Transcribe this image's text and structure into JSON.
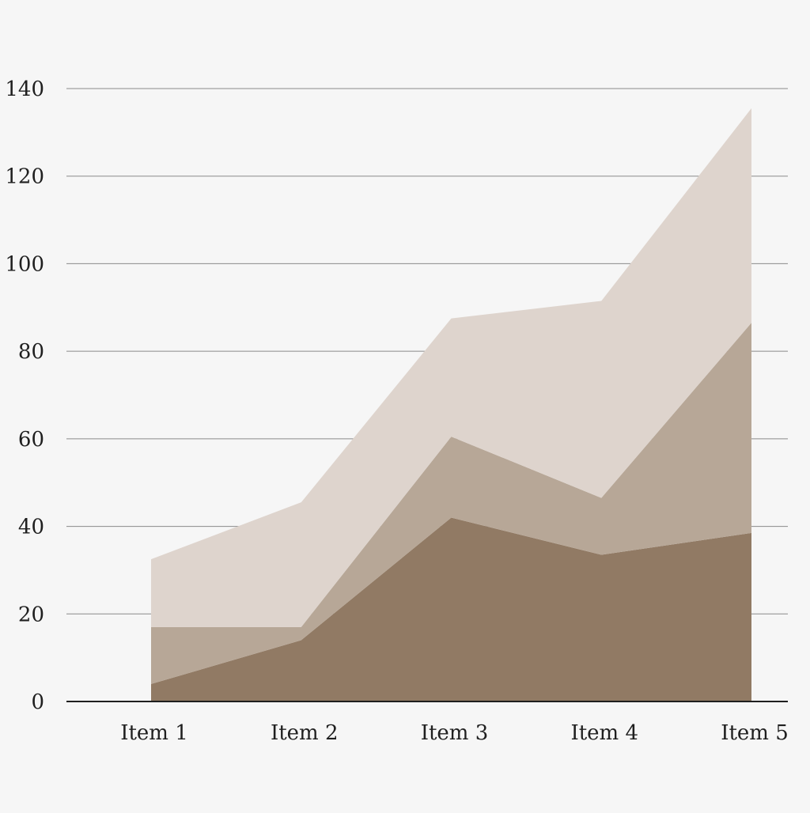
{
  "chart_data": {
    "type": "area",
    "stacked": true,
    "title": "",
    "xlabel": "",
    "ylabel": "",
    "categories": [
      "Item 1",
      "Item 2",
      "Item 3",
      "Item 4",
      "Item 5"
    ],
    "ylim": [
      0,
      140
    ],
    "yticks": [
      0,
      20,
      40,
      60,
      80,
      100,
      120,
      140
    ],
    "grid": true,
    "legend": "none",
    "series": [
      {
        "values": [
          4,
          14,
          42,
          33.5,
          38.5
        ],
        "color": "#917a64"
      },
      {
        "values": [
          13,
          3,
          18.5,
          13,
          48
        ],
        "color": "#b7a797"
      },
      {
        "values": [
          15.5,
          28.5,
          27,
          45,
          49
        ],
        "color": "#ded4cd"
      }
    ],
    "colors": {
      "background": "#f6f6f6",
      "gridline": "#8a8a8a",
      "axis": "#1f1f1f",
      "text": "#1f1f1f"
    }
  }
}
